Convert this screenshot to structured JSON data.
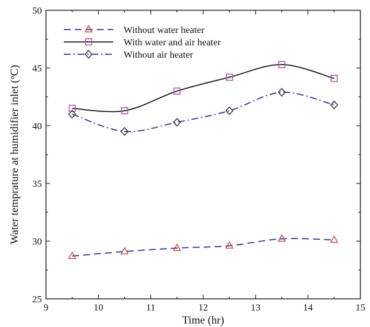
{
  "chart_data": {
    "type": "line",
    "title": "",
    "xlabel": "Time (hr)",
    "ylabel_prefix": "Water temprature at humidifier inlet (",
    "ylabel_sup": "o",
    "ylabel_suffix": "C)",
    "xlim": [
      9,
      15
    ],
    "ylim": [
      25,
      50
    ],
    "xticks": [
      9,
      10,
      11,
      12,
      13,
      14,
      15
    ],
    "yticks": [
      25,
      30,
      35,
      40,
      45,
      50
    ],
    "x": [
      9.5,
      10.5,
      11.5,
      12.5,
      13.5,
      14.5
    ],
    "grid": false,
    "legend_position": "top-left",
    "series": [
      {
        "name": "Without water heater",
        "values": [
          28.7,
          29.1,
          29.4,
          29.6,
          30.2,
          30.1
        ],
        "color": "#2b2f8f",
        "marker": "triangle",
        "marker_color": "#c0504d",
        "dash": "dashed"
      },
      {
        "name": "With water and air heater",
        "values": [
          41.5,
          41.3,
          43.0,
          44.2,
          45.3,
          44.1
        ],
        "color": "#111111",
        "marker": "square",
        "marker_color": "#b04cb0",
        "dash": "solid"
      },
      {
        "name": "Without air heater",
        "values": [
          41.0,
          39.5,
          40.3,
          41.3,
          42.9,
          41.8
        ],
        "color": "#2b2f8f",
        "marker": "diamond",
        "marker_color": "#333333",
        "dash": "dashdot"
      }
    ]
  }
}
